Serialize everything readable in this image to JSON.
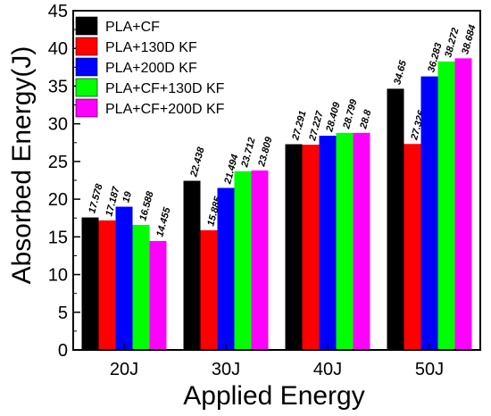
{
  "chart_data": {
    "type": "bar",
    "categories": [
      "20J",
      "30J",
      "40J",
      "50J"
    ],
    "series": [
      {
        "name": "PLA+CF",
        "color": "#000000",
        "values": [
          17.578,
          22.438,
          27.291,
          34.65
        ],
        "labels": [
          "17.578",
          "22.438",
          "27.291",
          "34.65"
        ]
      },
      {
        "name": "PLA+130D KF",
        "color": "#ff0000",
        "values": [
          17.187,
          15.885,
          27.227,
          27.326
        ],
        "labels": [
          "17.187",
          "15.885",
          "27.227",
          "27.326"
        ]
      },
      {
        "name": "PLA+200D KF",
        "color": "#0000ff",
        "values": [
          19,
          21.494,
          28.409,
          36.283
        ],
        "labels": [
          "19",
          "21.494",
          "28.409",
          "36.283"
        ]
      },
      {
        "name": "PLA+CF+130D KF",
        "color": "#00ff00",
        "values": [
          16.588,
          23.712,
          28.799,
          38.272
        ],
        "labels": [
          "16.588",
          "23.712",
          "28.799",
          "38.272"
        ]
      },
      {
        "name": "PLA+CF+200D KF",
        "color": "#ff00ff",
        "values": [
          14.455,
          23.809,
          28.8,
          38.684
        ],
        "labels": [
          "14.455",
          "23.809",
          "28.8",
          "38.684"
        ]
      }
    ],
    "title": "",
    "xlabel": "Applied Energy",
    "ylabel": "Absorbed Energy(J)",
    "ylim": [
      0,
      45
    ],
    "yticks": [
      0,
      5,
      10,
      15,
      20,
      25,
      30,
      35,
      40,
      45
    ],
    "grid": false,
    "legend_position": "top-left"
  }
}
